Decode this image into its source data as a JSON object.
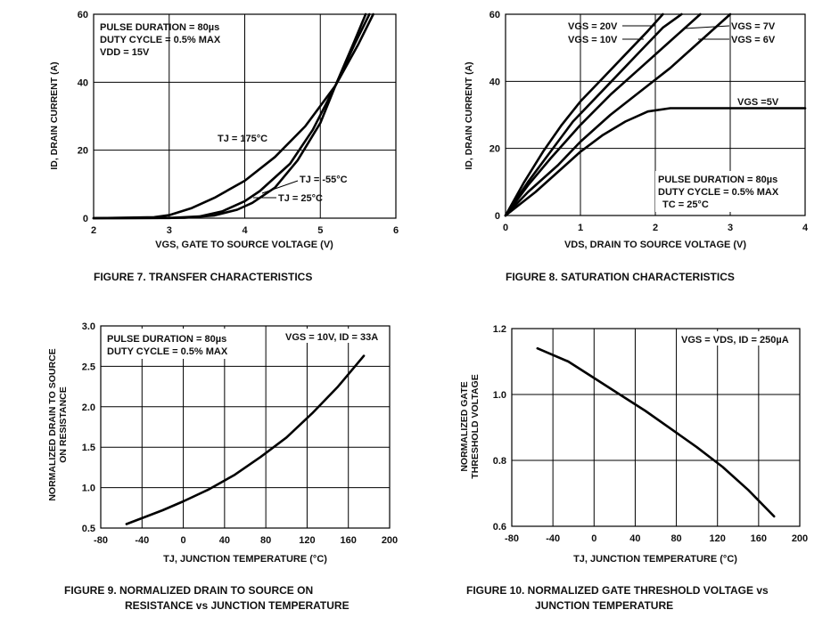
{
  "chart_data": [
    {
      "type": "line",
      "caption": "FIGURE 7.  TRANSFER CHARACTERISTICS",
      "xlabel": "VGS, GATE TO SOURCE VOLTAGE (V)",
      "ylabel": "ID, DRAIN CURRENT (A)",
      "xlim": [
        2,
        6
      ],
      "ylim": [
        0,
        60
      ],
      "xticks": [
        "2",
        "3",
        "4",
        "5",
        "6"
      ],
      "yticks": [
        "0",
        "20",
        "40",
        "60"
      ],
      "grid": true,
      "notes": [
        "PULSE DURATION = 80µs",
        "DUTY CYCLE = 0.5% MAX",
        "VDD = 15V"
      ],
      "series": [
        {
          "name": "TJ = 175°C",
          "x": [
            2.0,
            2.8,
            3.0,
            3.3,
            3.6,
            4.0,
            4.4,
            4.8,
            5.2,
            5.5,
            5.7
          ],
          "y": [
            0,
            0.3,
            0.9,
            3,
            6,
            11,
            18,
            27,
            39,
            51,
            60
          ]
        },
        {
          "name": "TJ = -55°C",
          "x": [
            2.0,
            3.0,
            3.4,
            3.7,
            4.0,
            4.2,
            4.6,
            4.9,
            5.2,
            5.45,
            5.65
          ],
          "y": [
            0,
            0.05,
            0.5,
            2,
            5,
            8,
            16,
            26,
            39,
            51,
            60
          ]
        },
        {
          "name": "TJ = 25°C",
          "x": [
            2.0,
            3.2,
            3.6,
            3.9,
            4.1,
            4.4,
            4.7,
            5.0,
            5.2,
            5.45,
            5.6
          ],
          "y": [
            0,
            0.1,
            0.8,
            2.5,
            4.5,
            9,
            17,
            28,
            39,
            52,
            60
          ]
        }
      ]
    },
    {
      "type": "line",
      "caption": "FIGURE 8.  SATURATION CHARACTERISTICS",
      "xlabel": "VDS, DRAIN TO SOURCE VOLTAGE (V)",
      "ylabel": "ID, DRAIN CURRENT (A)",
      "xlim": [
        0,
        4
      ],
      "ylim": [
        0,
        60
      ],
      "xticks": [
        "0",
        "1",
        "2",
        "3",
        "4"
      ],
      "yticks": [
        "0",
        "20",
        "40",
        "60"
      ],
      "grid": true,
      "notes": [
        "PULSE DURATION = 80µs",
        "DUTY CYCLE = 0.5% MAX",
        "TC = 25°C"
      ],
      "series": [
        {
          "name": "VGS = 20V",
          "x": [
            0,
            0.25,
            0.5,
            0.75,
            1.0,
            1.3,
            1.6,
            1.9,
            2.1
          ],
          "y": [
            0,
            10,
            19,
            27,
            34,
            41,
            48,
            55,
            60
          ]
        },
        {
          "name": "VGS = 10V",
          "x": [
            0,
            0.3,
            0.6,
            0.9,
            1.2,
            1.5,
            1.8,
            2.1,
            2.35
          ],
          "y": [
            0,
            10,
            19,
            28,
            35,
            42,
            49,
            56,
            60
          ]
        },
        {
          "name": "VGS = 7V",
          "x": [
            0,
            0.3,
            0.6,
            1.0,
            1.4,
            1.8,
            2.2,
            2.6
          ],
          "y": [
            0,
            9,
            17,
            27,
            36,
            44,
            52,
            60
          ]
        },
        {
          "name": "VGS = 6V",
          "x": [
            0,
            0.3,
            0.7,
            1.0,
            1.4,
            1.8,
            2.2,
            2.6,
            3.0
          ],
          "y": [
            0,
            7,
            15,
            22,
            30,
            37,
            44,
            52,
            60
          ]
        },
        {
          "name": "VGS =5V",
          "x": [
            0,
            0.4,
            0.8,
            1.0,
            1.3,
            1.6,
            1.9,
            2.2,
            2.6,
            3.0,
            4.0
          ],
          "y": [
            0,
            7,
            15,
            19,
            24,
            28,
            31,
            32,
            32,
            32,
            32
          ]
        }
      ]
    },
    {
      "type": "line",
      "caption": [
        "FIGURE 9.  NORMALIZED DRAIN TO SOURCE ON",
        "RESISTANCE vs JUNCTION TEMPERATURE"
      ],
      "xlabel": "TJ, JUNCTION TEMPERATURE (°C)",
      "ylabel": [
        "NORMALIZED DRAIN TO SOURCE",
        "ON RESISTANCE"
      ],
      "xlim": [
        -80,
        200
      ],
      "ylim": [
        0.5,
        3.0
      ],
      "xticks": [
        "-80",
        "-40",
        "0",
        "40",
        "80",
        "120",
        "160",
        "200"
      ],
      "yticks": [
        "0.5",
        "1.0",
        "1.5",
        "2.0",
        "2.5",
        "3.0"
      ],
      "grid": true,
      "notes": [
        "PULSE DURATION = 80µs",
        "DUTY CYCLE = 0.5% MAX"
      ],
      "condition": "VGS = 10V, ID = 33A",
      "series": [
        {
          "x": [
            -55,
            -20,
            0,
            25,
            50,
            75,
            100,
            125,
            150,
            175
          ],
          "y": [
            0.55,
            0.72,
            0.83,
            0.98,
            1.16,
            1.38,
            1.62,
            1.92,
            2.25,
            2.63
          ]
        }
      ]
    },
    {
      "type": "line",
      "caption": [
        "FIGURE 10.  NORMALIZED GATE THRESHOLD VOLTAGE vs",
        "JUNCTION TEMPERATURE"
      ],
      "xlabel": "TJ, JUNCTION TEMPERATURE (°C)",
      "ylabel": [
        "NORMALIZED GATE",
        "THRESHOLD VOLTAGE"
      ],
      "xlim": [
        -80,
        200
      ],
      "ylim": [
        0.6,
        1.2
      ],
      "xticks": [
        "-80",
        "-40",
        "0",
        "40",
        "80",
        "120",
        "160",
        "200"
      ],
      "yticks": [
        "0.6",
        "0.8",
        "1.0",
        "1.2"
      ],
      "grid": true,
      "condition": "VGS = VDS, ID = 250µA",
      "series": [
        {
          "x": [
            -55,
            -25,
            0,
            25,
            50,
            75,
            100,
            125,
            150,
            175
          ],
          "y": [
            1.14,
            1.1,
            1.05,
            1.0,
            0.95,
            0.895,
            0.84,
            0.78,
            0.71,
            0.63
          ]
        }
      ]
    }
  ]
}
